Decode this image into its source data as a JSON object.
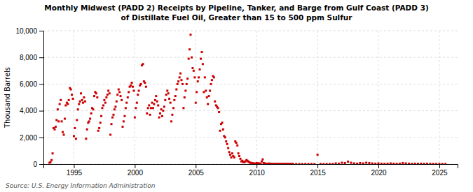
{
  "chart_data": {
    "type": "scatter",
    "title": "Monthly Midwest (PADD 2) Receipts by Pipeline, Tanker, and Barge from Gulf Coast (PADD 3)",
    "subtitle": "of Distillate Fuel Oil, Greater than 15 to 500 ppm Sulfur",
    "ylabel": "Thousand Barrels",
    "annotations": [
      "Source: U.S. Energy Information Administration"
    ],
    "color": "#cc0000",
    "marker": "square",
    "grid": true,
    "xlim": [
      1992.5,
      2026.5
    ],
    "ylim": [
      0,
      10000
    ],
    "xticks": [
      1995,
      2000,
      2005,
      2010,
      2015,
      2020,
      2025
    ],
    "yticks": [
      0,
      {
        "value": 2000,
        "label": "2,000"
      },
      {
        "value": 4000,
        "label": "4,000"
      },
      {
        "value": 6000,
        "label": "6,000"
      },
      {
        "value": 8000,
        "label": "8,000"
      },
      {
        "value": 10000,
        "label": "10,000"
      }
    ],
    "x": [
      1993.0,
      1993.08,
      1993.17,
      1993.25,
      1993.33,
      1993.42,
      1993.5,
      1993.58,
      1993.67,
      1993.75,
      1993.83,
      1993.92,
      1994.0,
      1994.08,
      1994.17,
      1994.25,
      1994.33,
      1994.42,
      1994.5,
      1994.58,
      1994.67,
      1994.75,
      1994.83,
      1994.92,
      1995.0,
      1995.08,
      1995.17,
      1995.25,
      1995.33,
      1995.42,
      1995.5,
      1995.58,
      1995.67,
      1995.75,
      1995.83,
      1995.92,
      1996.0,
      1996.08,
      1996.17,
      1996.25,
      1996.33,
      1996.42,
      1996.5,
      1996.58,
      1996.67,
      1996.75,
      1996.83,
      1996.92,
      1997.0,
      1997.08,
      1997.17,
      1997.25,
      1997.33,
      1997.42,
      1997.5,
      1997.58,
      1997.67,
      1997.75,
      1997.83,
      1997.92,
      1998.0,
      1998.08,
      1998.17,
      1998.25,
      1998.33,
      1998.42,
      1998.5,
      1998.58,
      1998.67,
      1998.75,
      1998.83,
      1998.92,
      1999.0,
      1999.08,
      1999.17,
      1999.25,
      1999.33,
      1999.42,
      1999.5,
      1999.58,
      1999.67,
      1999.75,
      1999.83,
      1999.92,
      2000.0,
      2000.08,
      2000.17,
      2000.25,
      2000.33,
      2000.42,
      2000.5,
      2000.58,
      2000.67,
      2000.75,
      2000.83,
      2000.92,
      2001.0,
      2001.08,
      2001.17,
      2001.25,
      2001.33,
      2001.42,
      2001.5,
      2001.58,
      2001.67,
      2001.75,
      2001.83,
      2001.92,
      2002.0,
      2002.08,
      2002.17,
      2002.25,
      2002.33,
      2002.42,
      2002.5,
      2002.58,
      2002.67,
      2002.75,
      2002.83,
      2002.92,
      2003.0,
      2003.08,
      2003.17,
      2003.25,
      2003.33,
      2003.42,
      2003.5,
      2003.58,
      2003.67,
      2003.75,
      2003.83,
      2003.92,
      2004.0,
      2004.08,
      2004.17,
      2004.25,
      2004.33,
      2004.42,
      2004.5,
      2004.58,
      2004.67,
      2004.75,
      2004.83,
      2004.92,
      2005.0,
      2005.08,
      2005.17,
      2005.25,
      2005.33,
      2005.42,
      2005.5,
      2005.58,
      2005.67,
      2005.75,
      2005.83,
      2005.92,
      2006.0,
      2006.08,
      2006.17,
      2006.25,
      2006.33,
      2006.42,
      2006.5,
      2006.58,
      2006.67,
      2006.75,
      2006.83,
      2006.92,
      2007.0,
      2007.08,
      2007.17,
      2007.25,
      2007.33,
      2007.42,
      2007.5,
      2007.58,
      2007.67,
      2007.75,
      2007.83,
      2007.92,
      2008.0,
      2008.08,
      2008.17,
      2008.25,
      2008.33,
      2008.42,
      2008.5,
      2008.58,
      2008.67,
      2008.75,
      2008.83,
      2008.92,
      2009.0,
      2009.08,
      2009.17,
      2009.25,
      2009.33,
      2009.42,
      2009.5,
      2009.58,
      2009.67,
      2009.75,
      2009.83,
      2009.92,
      2010.0,
      2010.08,
      2010.17,
      2010.25,
      2010.33,
      2010.42,
      2010.5,
      2010.58,
      2010.67,
      2010.75,
      2010.83,
      2010.92,
      2011.0,
      2011.08,
      2011.17,
      2011.25,
      2011.33,
      2011.42,
      2011.5,
      2011.58,
      2011.67,
      2011.75,
      2011.83,
      2011.92,
      2012.0,
      2012.08,
      2012.17,
      2012.25,
      2012.33,
      2012.42,
      2012.5,
      2012.58,
      2012.67,
      2012.75,
      2012.83,
      2012.92,
      2013.0,
      2013.25,
      2013.5,
      2013.75,
      2014.0,
      2014.25,
      2014.5,
      2014.75,
      2015.0,
      2015.25,
      2015.5,
      2015.75,
      2016.0,
      2016.25,
      2016.5,
      2016.75,
      2017.0,
      2017.25,
      2017.5,
      2017.75,
      2018.0,
      2018.25,
      2018.5,
      2018.75,
      2019.0,
      2019.25,
      2019.5,
      2019.75,
      2020.0,
      2020.25,
      2020.5,
      2020.75,
      2021.0,
      2021.25,
      2021.5,
      2021.75,
      2022.0,
      2022.25,
      2022.5,
      2022.75,
      2023.0,
      2023.25,
      2023.5,
      2023.75,
      2024.0,
      2024.25,
      2024.5,
      2024.75,
      2025.0,
      2025.25,
      2025.5
    ],
    "values": [
      100,
      150,
      300,
      800,
      2700,
      2600,
      2800,
      3300,
      4100,
      3200,
      4500,
      4800,
      3200,
      2400,
      2200,
      3400,
      4400,
      4600,
      4500,
      4800,
      5700,
      5600,
      5200,
      4900,
      2100,
      2700,
      1900,
      3300,
      4100,
      4500,
      4700,
      5300,
      4800,
      4600,
      5000,
      4700,
      1900,
      2600,
      3100,
      3200,
      3400,
      3800,
      4200,
      4100,
      5100,
      5400,
      5300,
      5000,
      2500,
      2700,
      3100,
      3600,
      4200,
      4400,
      4800,
      4600,
      5000,
      5200,
      5500,
      5300,
      2200,
      3000,
      3500,
      3700,
      4100,
      4300,
      4700,
      5200,
      5600,
      5400,
      5100,
      4800,
      2800,
      3200,
      3600,
      4200,
      4600,
      5000,
      5400,
      5800,
      5900,
      6100,
      5800,
      5500,
      3500,
      4200,
      4600,
      5200,
      5500,
      5900,
      6000,
      7400,
      7500,
      6200,
      6100,
      5800,
      3800,
      4200,
      4400,
      3700,
      4200,
      4600,
      4200,
      4500,
      4800,
      5100,
      4700,
      4400,
      3500,
      3800,
      4100,
      3600,
      4000,
      4300,
      4800,
      5200,
      5500,
      5300,
      4900,
      4600,
      3200,
      3700,
      4200,
      4800,
      5100,
      5600,
      6000,
      6200,
      6500,
      6800,
      6300,
      6000,
      4200,
      5000,
      5500,
      6000,
      6400,
      7900,
      8600,
      9700,
      8000,
      7200,
      7000,
      6500,
      4600,
      5400,
      6200,
      6500,
      7100,
      7900,
      8400,
      7500,
      5400,
      6500,
      5500,
      5000,
      4500,
      5100,
      5500,
      6000,
      6300,
      6600,
      6500,
      4700,
      4400,
      4300,
      4200,
      3900,
      2500,
      3000,
      3100,
      2600,
      2100,
      2000,
      1700,
      1500,
      1200,
      900,
      700,
      500,
      800,
      600,
      500,
      1700,
      1600,
      1400,
      800,
      600,
      400,
      200,
      250,
      150,
      150,
      200,
      300,
      250,
      180,
      120,
      100,
      80,
      60,
      50,
      40,
      30,
      80,
      60,
      50,
      40,
      30,
      200,
      350,
      80,
      50,
      30,
      20,
      15,
      40,
      30,
      20,
      15,
      10,
      8,
      5,
      5,
      10,
      8,
      5,
      3,
      5,
      8,
      5,
      3,
      5,
      3,
      5,
      3,
      2,
      5,
      3,
      2,
      5,
      3,
      5,
      3,
      5,
      3,
      5,
      3,
      700,
      5,
      3,
      5,
      3,
      5,
      50,
      30,
      100,
      80,
      180,
      100,
      50,
      30,
      80,
      50,
      100,
      80,
      50,
      30,
      50,
      30,
      20,
      30,
      50,
      30,
      20,
      30,
      80,
      50,
      30,
      20,
      30,
      20,
      30,
      20,
      30,
      20,
      15,
      10,
      10,
      8,
      5
    ]
  }
}
